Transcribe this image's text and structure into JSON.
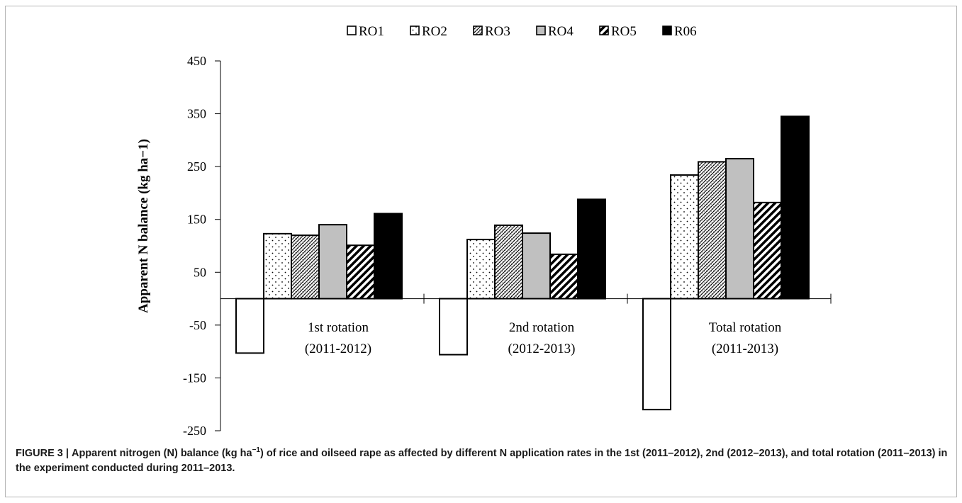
{
  "chart_data": {
    "type": "bar",
    "ylabel": "Apparent N balance (kg ha−1)",
    "ylim": [
      -250,
      450
    ],
    "yticks": [
      450,
      350,
      250,
      150,
      50,
      -50,
      -150,
      -250
    ],
    "categories": [
      {
        "line1": "1st rotation",
        "line2": "(2011-2012)"
      },
      {
        "line1": "2nd rotation",
        "line2": "(2012-2013)"
      },
      {
        "line1": "Total rotation",
        "line2": "(2011-2013)"
      }
    ],
    "series": [
      {
        "name": "RO1",
        "values": [
          -103,
          -106,
          -210
        ],
        "pattern": "white"
      },
      {
        "name": "RO2",
        "values": [
          123,
          112,
          234
        ],
        "pattern": "dots"
      },
      {
        "name": "RO3",
        "values": [
          120,
          139,
          259
        ],
        "pattern": "crosshatch"
      },
      {
        "name": "RO4",
        "values": [
          140,
          124,
          265
        ],
        "pattern": "gray"
      },
      {
        "name": "RO5",
        "values": [
          101,
          84,
          182
        ],
        "pattern": "diagonal"
      },
      {
        "name": "R06",
        "values": [
          161,
          188,
          345
        ],
        "pattern": "black"
      }
    ],
    "legend_position": "top-center",
    "grid": false,
    "colors": {
      "gray": "#c0c0c0",
      "black": "#000000",
      "white": "#ffffff"
    }
  },
  "caption": {
    "label": "FIGURE 3 |",
    "text_before_sup": "Apparent nitrogen (N) balance (kg ha",
    "sup": "−1",
    "text_after_sup": ") of rice and oilseed rape as affected by different N application rates in the 1st (2011–2012), 2nd (2012–2013), and total rotation (2011–2013) in the experiment conducted during 2011–2013."
  }
}
